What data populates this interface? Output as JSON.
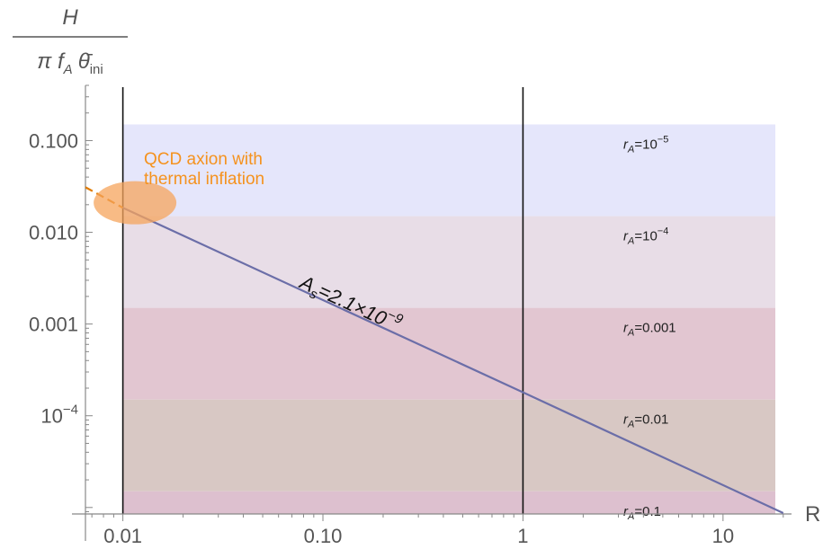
{
  "chart_data": {
    "type": "line",
    "ylabel_numerator": "H",
    "ylabel_denominator": {
      "prefix": "π f",
      "sub1": "A",
      "theta": "θ̄",
      "sub2": "ini"
    },
    "xlabel": "R",
    "x_scale": "log",
    "y_scale": "log",
    "xlim": [
      0.0065,
      22
    ],
    "ylim": [
      8.5e-06,
      0.4
    ],
    "x_ticks": [
      {
        "value": 0.01,
        "label": "0.01"
      },
      {
        "value": 0.1,
        "label": "0.10"
      },
      {
        "value": 1,
        "label": "1"
      },
      {
        "value": 10,
        "label": "10"
      }
    ],
    "y_ticks": [
      {
        "value": 0.1,
        "label": "0.100"
      },
      {
        "value": 0.01,
        "label": "0.010"
      },
      {
        "value": 0.001,
        "label": "0.001"
      },
      {
        "value": 0.0001,
        "label_base": "10",
        "label_exp": "−4"
      }
    ],
    "bands": [
      {
        "y_top": 0.15,
        "y_bottom": 0.015,
        "color": "#e5e6fb",
        "label": {
          "r": "r",
          "sub": "A",
          "eq": "=10",
          "sup": "−5",
          "plain": ""
        }
      },
      {
        "y_top": 0.015,
        "y_bottom": 0.0015,
        "color": "#e8dde7",
        "label": {
          "r": "r",
          "sub": "A",
          "eq": "=10",
          "sup": "−4",
          "plain": ""
        }
      },
      {
        "y_top": 0.0015,
        "y_bottom": 0.00015,
        "color": "#e2c6d1",
        "label": {
          "r": "r",
          "sub": "A",
          "eq": "=0.001",
          "sup": "",
          "plain": ""
        }
      },
      {
        "y_top": 0.00015,
        "y_bottom": 1.5e-05,
        "color": "#d8c8c4",
        "label": {
          "r": "r",
          "sub": "A",
          "eq": "=0.01",
          "sup": "",
          "plain": ""
        }
      },
      {
        "y_top": 1.5e-05,
        "y_bottom": 8.5e-06,
        "color": "#ddc0cf",
        "label": {
          "r": "r",
          "sub": "A",
          "eq": "=0.1",
          "sup": "",
          "plain": ""
        }
      }
    ],
    "band_x_start": 0.01,
    "series": [
      {
        "name": "As=2.1×10−9",
        "label_parts": {
          "main": "A",
          "sub": "s",
          "rest": "=2.1×10",
          "sup": "−9"
        },
        "color": "#6b6ea8",
        "dashed_color": "#e07b00",
        "x": [
          0.0065,
          0.01,
          1,
          20
        ],
        "y": [
          0.031,
          0.0185,
          0.00018,
          8.7e-06
        ],
        "dashed_until_x": 0.01
      }
    ],
    "vertical_lines": [
      0.01,
      1
    ],
    "annotation": {
      "lines": [
        "QCD axion with",
        "thermal inflation"
      ],
      "ellipse_x": 0.0115,
      "ellipse_y": 0.021,
      "color": "#f5a45c"
    }
  }
}
